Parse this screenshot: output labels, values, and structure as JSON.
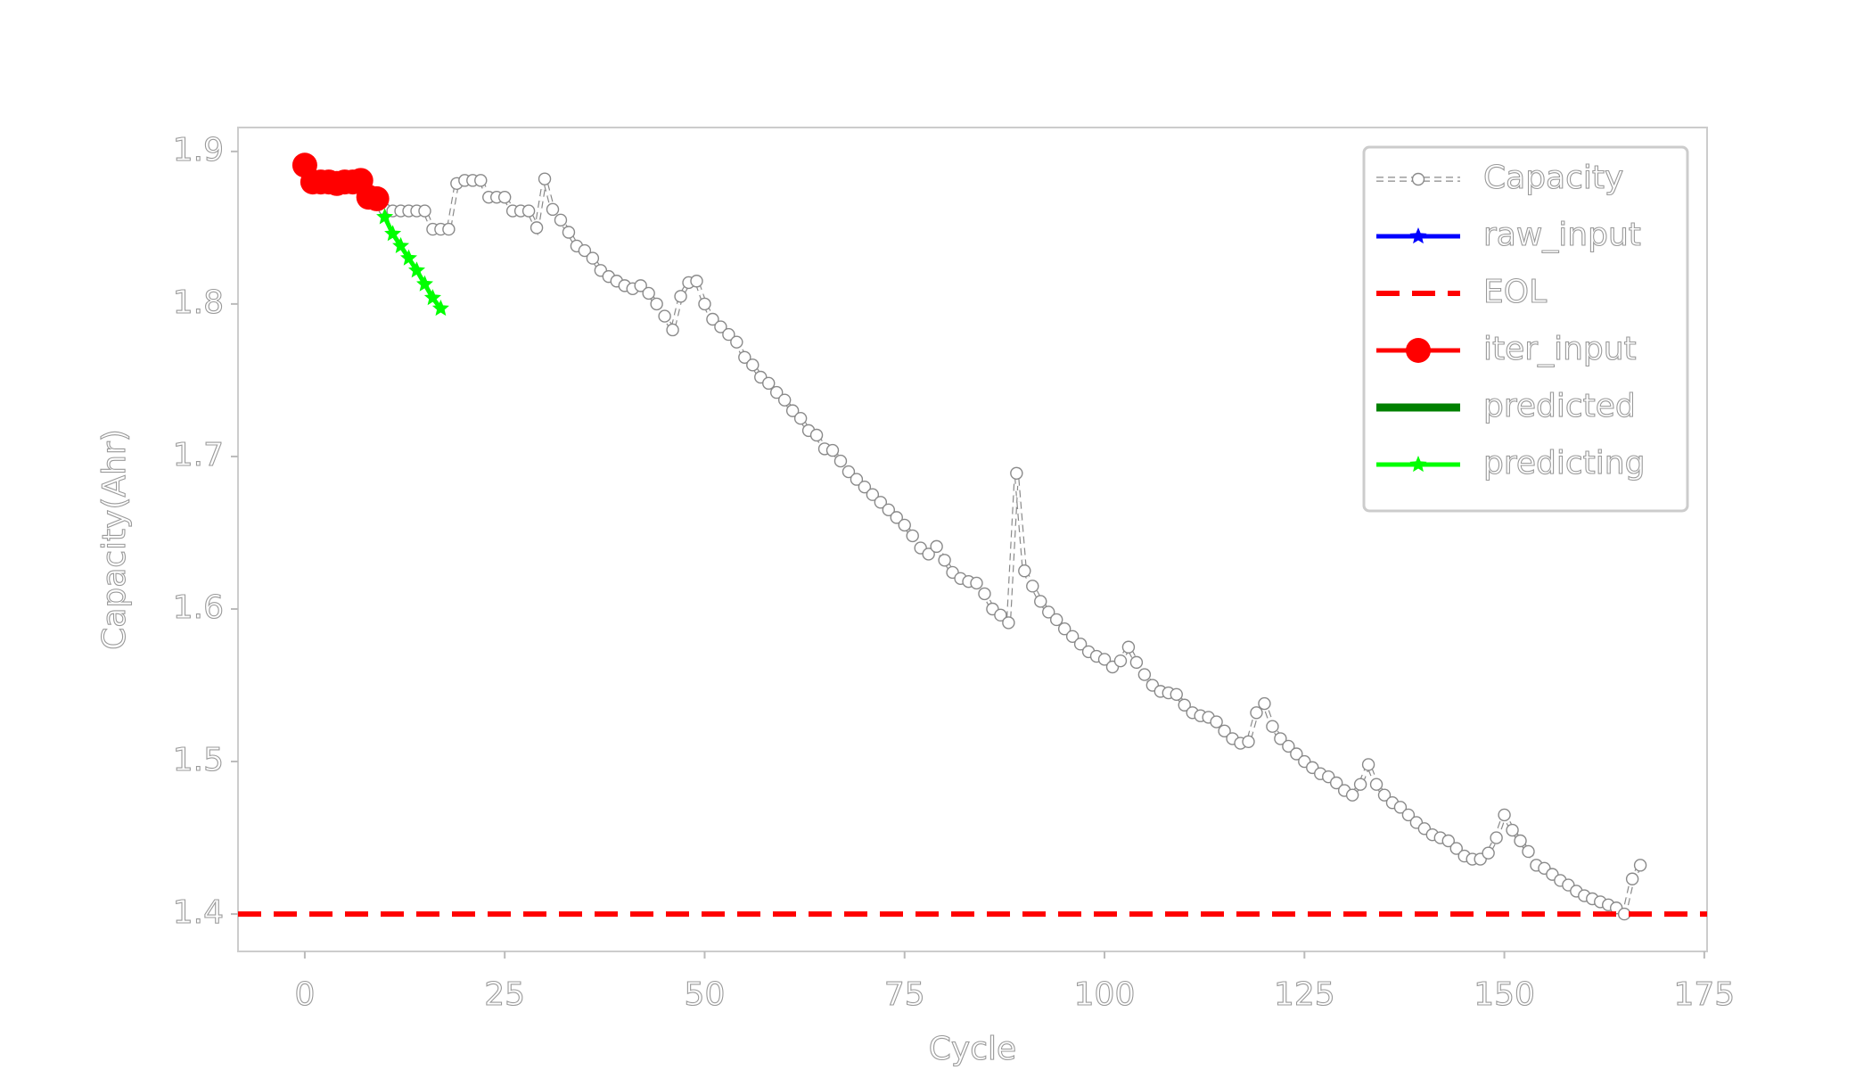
{
  "chart_data": {
    "type": "line",
    "xlabel": "Cycle",
    "ylabel": "Capacity(Ahr)",
    "xlim": [
      -8.35,
      175.35
    ],
    "ylim": [
      1.3755,
      1.9157
    ],
    "xticks": [
      0,
      25,
      50,
      75,
      100,
      125,
      150,
      175
    ],
    "yticks": [
      1.4,
      1.5,
      1.6,
      1.7,
      1.8,
      1.9
    ],
    "legend": "upper right",
    "series": [
      {
        "name": "Capacity",
        "color": "#ffffff",
        "marker": "circle",
        "linestyle": "dashed",
        "x": [
          0,
          1,
          2,
          3,
          4,
          5,
          6,
          7,
          8,
          9,
          10,
          11,
          12,
          13,
          14,
          15,
          16,
          17,
          18,
          19,
          20,
          21,
          22,
          23,
          24,
          25,
          26,
          27,
          28,
          29,
          30,
          31,
          32,
          33,
          34,
          35,
          36,
          37,
          38,
          39,
          40,
          41,
          42,
          43,
          44,
          45,
          46,
          47,
          48,
          49,
          50,
          51,
          52,
          53,
          54,
          55,
          56,
          57,
          58,
          59,
          60,
          61,
          62,
          63,
          64,
          65,
          66,
          67,
          68,
          69,
          70,
          71,
          72,
          73,
          74,
          75,
          76,
          77,
          78,
          79,
          80,
          81,
          82,
          83,
          84,
          85,
          86,
          87,
          88,
          89,
          90,
          91,
          92,
          93,
          94,
          95,
          96,
          97,
          98,
          99,
          100,
          101,
          102,
          103,
          104,
          105,
          106,
          107,
          108,
          109,
          110,
          111,
          112,
          113,
          114,
          115,
          116,
          117,
          118,
          119,
          120,
          121,
          122,
          123,
          124,
          125,
          126,
          127,
          128,
          129,
          130,
          131,
          132,
          133,
          134,
          135,
          136,
          137,
          138,
          139,
          140,
          141,
          142,
          143,
          144,
          145,
          146,
          147,
          148,
          149,
          150,
          151,
          152,
          153,
          154,
          155,
          156,
          157,
          158,
          159,
          160,
          161,
          162,
          163,
          164,
          165,
          166,
          167
        ],
        "values": [
          1.891,
          1.88,
          1.88,
          1.88,
          1.879,
          1.88,
          1.88,
          1.881,
          1.87,
          1.869,
          1.862,
          1.861,
          1.861,
          1.861,
          1.861,
          1.861,
          1.849,
          1.849,
          1.849,
          1.879,
          1.881,
          1.881,
          1.881,
          1.87,
          1.87,
          1.87,
          1.861,
          1.861,
          1.861,
          1.85,
          1.882,
          1.862,
          1.855,
          1.847,
          1.838,
          1.835,
          1.83,
          1.822,
          1.818,
          1.815,
          1.812,
          1.81,
          1.812,
          1.807,
          1.8,
          1.792,
          1.783,
          1.805,
          1.814,
          1.815,
          1.8,
          1.79,
          1.785,
          1.78,
          1.775,
          1.765,
          1.76,
          1.752,
          1.748,
          1.742,
          1.737,
          1.73,
          1.725,
          1.717,
          1.714,
          1.705,
          1.704,
          1.697,
          1.69,
          1.685,
          1.68,
          1.675,
          1.67,
          1.665,
          1.66,
          1.655,
          1.648,
          1.64,
          1.636,
          1.641,
          1.632,
          1.624,
          1.62,
          1.618,
          1.617,
          1.61,
          1.6,
          1.596,
          1.591,
          1.689,
          1.625,
          1.615,
          1.605,
          1.598,
          1.593,
          1.587,
          1.582,
          1.577,
          1.572,
          1.569,
          1.567,
          1.562,
          1.566,
          1.575,
          1.565,
          1.557,
          1.55,
          1.546,
          1.545,
          1.544,
          1.537,
          1.532,
          1.53,
          1.529,
          1.526,
          1.52,
          1.515,
          1.512,
          1.513,
          1.532,
          1.538,
          1.523,
          1.515,
          1.51,
          1.505,
          1.5,
          1.496,
          1.492,
          1.49,
          1.486,
          1.481,
          1.478,
          1.485,
          1.498,
          1.485,
          1.478,
          1.473,
          1.47,
          1.465,
          1.46,
          1.456,
          1.452,
          1.45,
          1.448,
          1.443,
          1.438,
          1.436,
          1.436,
          1.44,
          1.45,
          1.465,
          1.455,
          1.448,
          1.441,
          1.432,
          1.43,
          1.426,
          1.422,
          1.419,
          1.415,
          1.412,
          1.41,
          1.408,
          1.406,
          1.404,
          1.4,
          1.423,
          1.432
        ]
      },
      {
        "name": "raw_input",
        "color": "#0000ff",
        "marker": "star",
        "linestyle": "solid",
        "x": [],
        "values": []
      },
      {
        "name": "EOL",
        "color": "#ff0000",
        "marker": "none",
        "linestyle": "dashed",
        "x": [
          -8.35,
          175.35
        ],
        "values": [
          1.4,
          1.4
        ]
      },
      {
        "name": "iter_input",
        "color": "#ff0000",
        "marker": "bigcircle",
        "linestyle": "solid",
        "x": [
          0,
          1,
          2,
          3,
          4,
          5,
          6,
          7,
          8,
          9
        ],
        "values": [
          1.891,
          1.88,
          1.88,
          1.88,
          1.879,
          1.88,
          1.88,
          1.881,
          1.87,
          1.869
        ]
      },
      {
        "name": "predicted",
        "color": "#008000",
        "marker": "none",
        "linestyle": "thick",
        "x": [],
        "values": []
      },
      {
        "name": "predicting",
        "color": "#00ff00",
        "marker": "star",
        "linestyle": "solid",
        "x": [
          10,
          11,
          12,
          13,
          14,
          15,
          16,
          17
        ],
        "values": [
          1.857,
          1.846,
          1.838,
          1.83,
          1.822,
          1.813,
          1.804,
          1.797
        ]
      }
    ]
  }
}
